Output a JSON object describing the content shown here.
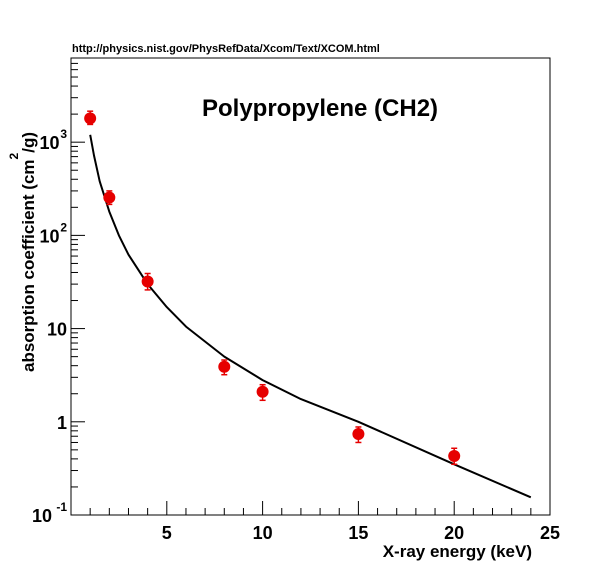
{
  "chart_data": {
    "type": "scatter",
    "title": "Polypropylene (CH2)",
    "source_note": "http://physics.nist.gov/PhysRefData/Xcom/Text/XCOM.html",
    "xlabel": "X-ray energy (keV)",
    "ylabel": {
      "main": "absorption coefficient (cm",
      "sup": "2",
      "tail": "/g)"
    },
    "xlim": [
      0,
      25
    ],
    "ylim": [
      0.1,
      8000
    ],
    "yscale": "log",
    "grid": false,
    "x_tick_labels": [
      "5",
      "10",
      "15",
      "20",
      "25"
    ],
    "y_tick_labels": [
      {
        "value": 0.1,
        "base": "10",
        "exp": "-1"
      },
      {
        "value": 1,
        "base": "1",
        "exp": ""
      },
      {
        "value": 10,
        "base": "10",
        "exp": ""
      },
      {
        "value": 100,
        "base": "10",
        "exp": "2"
      },
      {
        "value": 1000,
        "base": "10",
        "exp": "3"
      }
    ],
    "series": [
      {
        "kind": "points",
        "color": "#e60000",
        "points": [
          {
            "x": 1,
            "y": 1800,
            "ylo": 1550,
            "yhi": 2150
          },
          {
            "x": 2,
            "y": 255,
            "ylo": 215,
            "yhi": 300
          },
          {
            "x": 4,
            "y": 32,
            "ylo": 26,
            "yhi": 39
          },
          {
            "x": 8,
            "y": 3.9,
            "ylo": 3.2,
            "yhi": 4.6
          },
          {
            "x": 10,
            "y": 2.1,
            "ylo": 1.7,
            "yhi": 2.5
          },
          {
            "x": 15,
            "y": 0.74,
            "ylo": 0.6,
            "yhi": 0.88
          },
          {
            "x": 20,
            "y": 0.43,
            "ylo": 0.35,
            "yhi": 0.52
          }
        ]
      },
      {
        "kind": "curve",
        "color": "#000000",
        "x": [
          1.0,
          1.2,
          1.5,
          2.0,
          2.5,
          3.0,
          4.0,
          5.0,
          6.0,
          8.0,
          10.0,
          12.0,
          15.0,
          20.0,
          24.0
        ],
        "y": [
          1200,
          720,
          380,
          180,
          100,
          62,
          30,
          17,
          10.5,
          5.0,
          2.8,
          1.75,
          1.0,
          0.35,
          0.155
        ]
      }
    ]
  }
}
